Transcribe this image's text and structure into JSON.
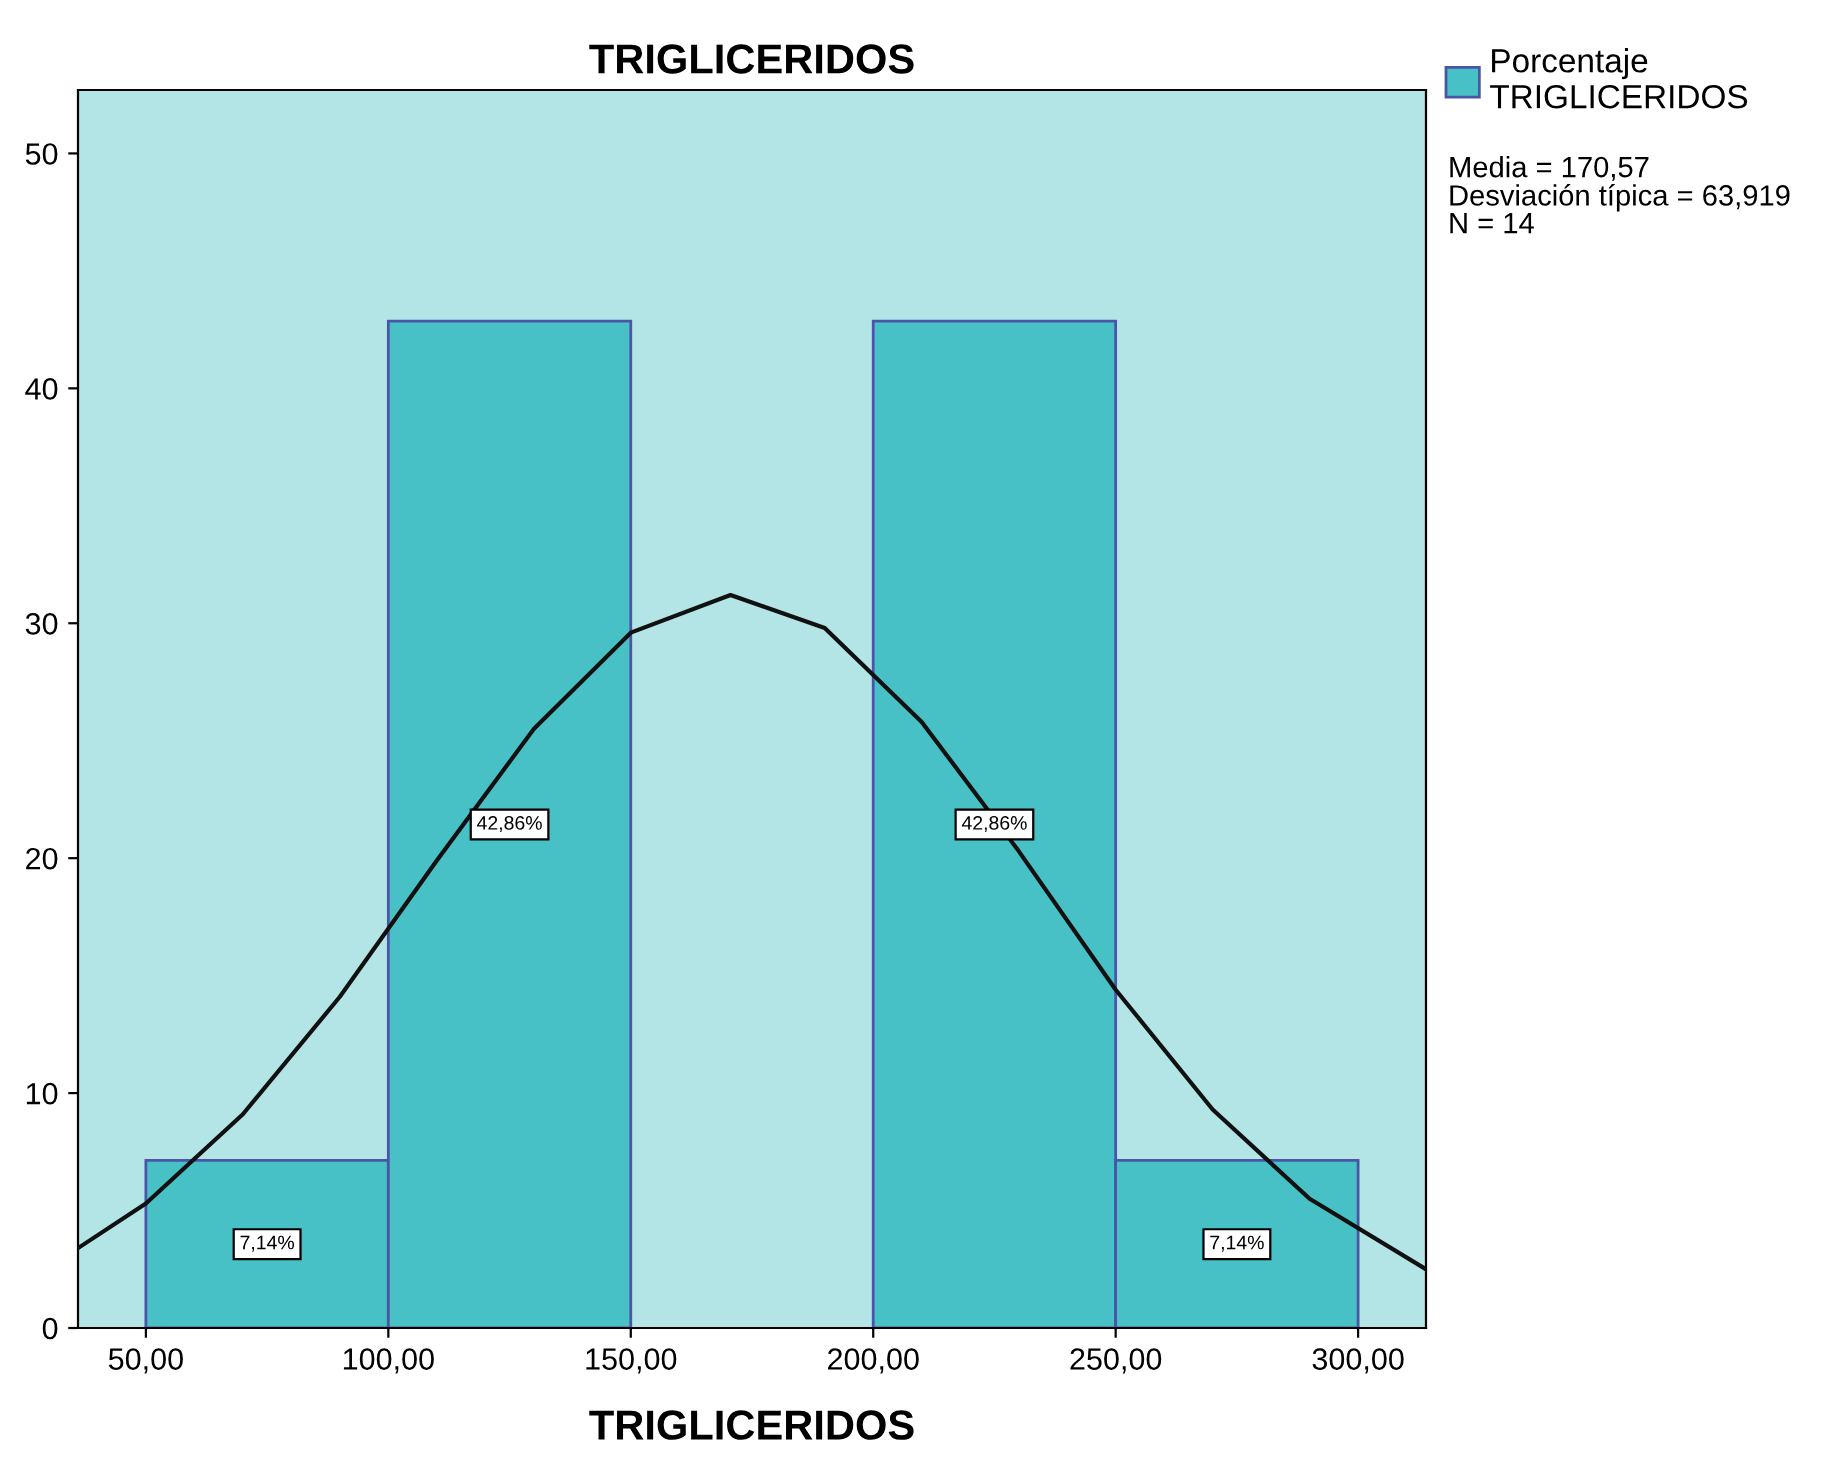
{
  "chart_data": {
    "type": "histogram",
    "title": "TRIGLICERIDOS",
    "xlabel": "TRIGLICERIDOS",
    "bins": [
      50,
      100,
      150,
      200,
      250,
      300
    ],
    "series": [
      {
        "name": "Porcentaje\nTRIGLICERIDOS",
        "color": "#48c1c6",
        "values": [
          7.14,
          42.86,
          0,
          42.86,
          7.14
        ],
        "value_labels": [
          "7,14%",
          "42,86%",
          null,
          "42,86%",
          "7,14%"
        ]
      },
      {
        "type": "line",
        "color": "#111111",
        "x": [
          36,
          50,
          70,
          90,
          110,
          130,
          150,
          170.57,
          190,
          210,
          230,
          250,
          270,
          290,
          314
        ],
        "values": [
          3.4,
          5.3,
          9.1,
          14.1,
          19.9,
          25.5,
          29.6,
          31.2,
          29.8,
          25.8,
          20.3,
          14.4,
          9.3,
          5.5,
          2.5
        ]
      }
    ],
    "xlim": [
      36,
      314
    ],
    "ylim": [
      0,
      52.7
    ],
    "xticks": [
      {
        "value": 50,
        "label": "50,00"
      },
      {
        "value": 100,
        "label": "100,00"
      },
      {
        "value": 150,
        "label": "150,00"
      },
      {
        "value": 200,
        "label": "200,00"
      },
      {
        "value": 250,
        "label": "250,00"
      },
      {
        "value": 300,
        "label": "300,00"
      }
    ],
    "yticks": [
      0,
      10,
      20,
      30,
      40,
      50
    ],
    "grid": false,
    "legend": "top right",
    "annotations": [
      "Media = 170,57",
      "Desviación típica = 63,919",
      "N = 14"
    ]
  }
}
